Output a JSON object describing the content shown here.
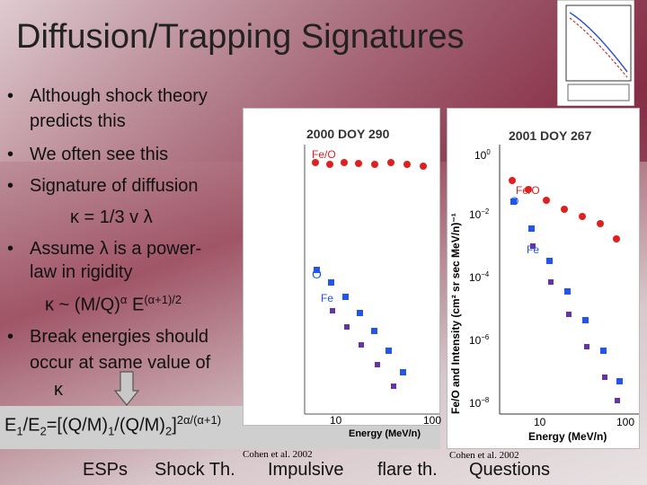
{
  "title": "Diffusion/Trapping Signatures",
  "bullets": [
    {
      "lines": [
        "Although shock theory",
        "predicts this"
      ]
    },
    {
      "lines": [
        "We often see this"
      ]
    },
    {
      "lines": [
        "Signature of diffusion"
      ]
    },
    {
      "lines": [
        "Assume λ is a power-",
        "law in rigidity"
      ]
    },
    {
      "lines": [
        "Break energies should",
        "occur at same value of",
        "κ"
      ]
    }
  ],
  "formula_kappa": "κ = 1/3 v λ",
  "formula_power": {
    "base": "κ ~ (M/Q)",
    "exp1": "α",
    "mid": " E",
    "exp2": "(α+1)/2"
  },
  "equation": {
    "a": "E",
    "sub1": "1",
    "b": "/E",
    "sub2": "2",
    "c": "=[(Q/M)",
    "sub3": "1",
    "d": "/(Q/M)",
    "sub4": "2",
    "e": "]",
    "sup": "2α/(α+1)"
  },
  "citations": [
    "Cohen et al. 2002",
    "Cohen et al. 2002"
  ],
  "plots": [
    {
      "title": "2000 DOY 290",
      "labels": [
        "Fe/O",
        "O",
        "Fe"
      ],
      "xticks": [
        "10",
        "100"
      ],
      "xlabel": "Energy (MeV/n)"
    },
    {
      "title": "2001 DOY 267",
      "labels": [
        "Fe/O",
        "O",
        "Fe"
      ],
      "xticks": [
        "10",
        "100"
      ],
      "xlabel": "Energy (MeV/n)",
      "ylabel": "Fe/O and Intensity (cm² sr sec MeV/n)⁻¹",
      "yticks": [
        {
          "base": "10",
          "exp": "0"
        },
        {
          "base": "10",
          "exp": "−2"
        },
        {
          "base": "10",
          "exp": "−4"
        },
        {
          "base": "10",
          "exp": "−6"
        },
        {
          "base": "10",
          "exp": "−8"
        }
      ]
    }
  ],
  "nav": [
    "ESPs",
    "Shock Th.",
    "Impulsive",
    "flare th.",
    "Questions"
  ]
}
